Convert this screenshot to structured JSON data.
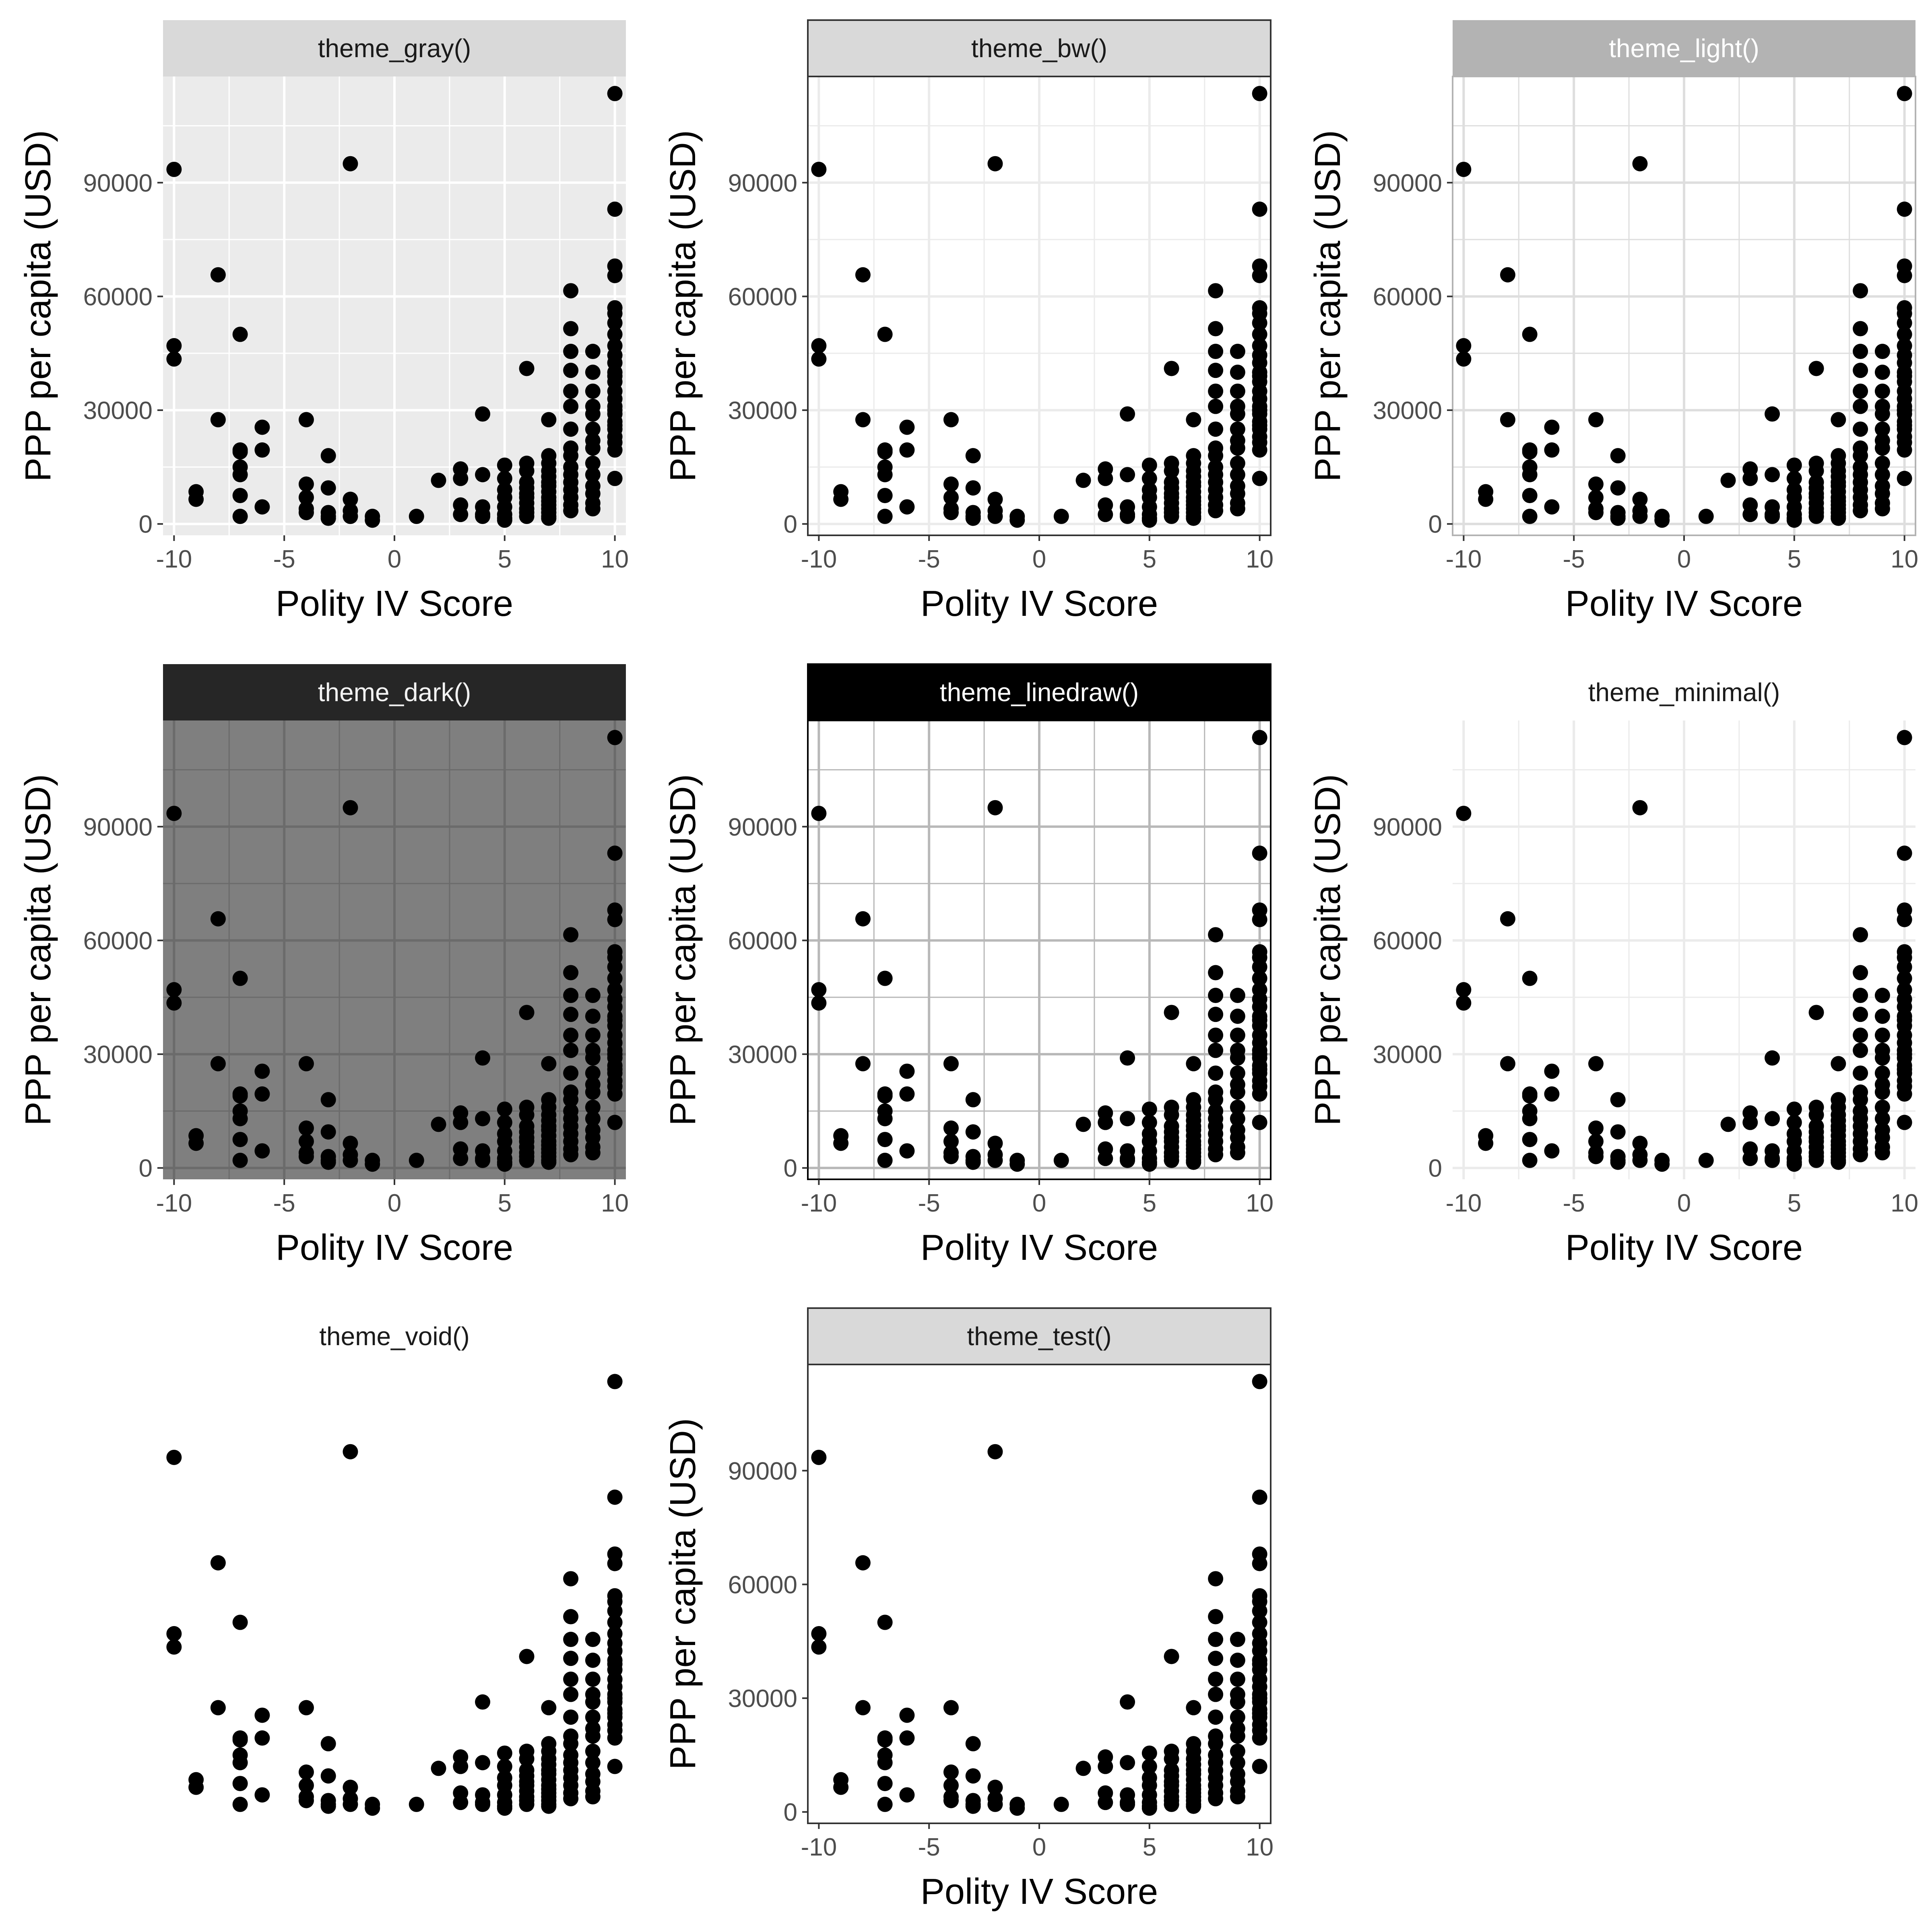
{
  "figure": {
    "panel_order": [
      "theme_gray()",
      "theme_bw()",
      "theme_light()",
      "theme_dark()",
      "theme_linedraw()",
      "theme_minimal()",
      "theme_void()",
      "theme_test()"
    ]
  },
  "chart_data": [
    {
      "type": "scatter",
      "theme": "gray",
      "title": "theme_gray()",
      "xlabel": "Polity IV Score",
      "ylabel": "PPP per capita (USD)",
      "xlim": [
        -10.5,
        10.5
      ],
      "ylim": [
        -3000,
        118000
      ],
      "x_ticks": [
        -10,
        -5,
        0,
        5,
        10
      ],
      "x_tick_labels": [
        "-10",
        "-5",
        "0",
        "5",
        "10"
      ],
      "y_ticks": [
        0,
        30000,
        60000,
        90000
      ],
      "y_tick_labels": [
        "0",
        "30000",
        "60000",
        "90000"
      ],
      "colors": {
        "background": "#ebebeb",
        "grid": "#ffffff",
        "strip_fill": "#d9d9d9",
        "strip_text": "#1a1a1a",
        "points": "#000000"
      }
    },
    {
      "type": "scatter",
      "theme": "bw",
      "title": "theme_bw()",
      "xlabel": "Polity IV Score",
      "ylabel": "PPP per capita (USD)",
      "xlim": [
        -10.5,
        10.5
      ],
      "ylim": [
        -3000,
        118000
      ],
      "x_ticks": [
        -10,
        -5,
        0,
        5,
        10
      ],
      "x_tick_labels": [
        "-10",
        "-5",
        "0",
        "5",
        "10"
      ],
      "y_ticks": [
        0,
        30000,
        60000,
        90000
      ],
      "y_tick_labels": [
        "0",
        "30000",
        "60000",
        "90000"
      ],
      "colors": {
        "background": "#ffffff",
        "grid": "#ebebeb",
        "border": "#333333",
        "strip_fill": "#d9d9d9",
        "strip_text": "#1a1a1a",
        "points": "#000000"
      }
    },
    {
      "type": "scatter",
      "theme": "light",
      "title": "theme_light()",
      "xlabel": "Polity IV Score",
      "ylabel": "PPP per capita (USD)",
      "xlim": [
        -10.5,
        10.5
      ],
      "ylim": [
        -3000,
        118000
      ],
      "x_ticks": [
        -10,
        -5,
        0,
        5,
        10
      ],
      "x_tick_labels": [
        "-10",
        "-5",
        "0",
        "5",
        "10"
      ],
      "y_ticks": [
        0,
        30000,
        60000,
        90000
      ],
      "y_tick_labels": [
        "0",
        "30000",
        "60000",
        "90000"
      ],
      "colors": {
        "background": "#ffffff",
        "grid": "#dedede",
        "border": "#b3b3b3",
        "strip_fill": "#b3b3b3",
        "strip_text": "#ffffff",
        "points": "#000000"
      }
    },
    {
      "type": "scatter",
      "theme": "dark",
      "title": "theme_dark()",
      "xlabel": "Polity IV Score",
      "ylabel": "PPP per capita (USD)",
      "xlim": [
        -10.5,
        10.5
      ],
      "ylim": [
        -3000,
        118000
      ],
      "x_ticks": [
        -10,
        -5,
        0,
        5,
        10
      ],
      "x_tick_labels": [
        "-10",
        "-5",
        "0",
        "5",
        "10"
      ],
      "y_ticks": [
        0,
        30000,
        60000,
        90000
      ],
      "y_tick_labels": [
        "0",
        "30000",
        "60000",
        "90000"
      ],
      "colors": {
        "background": "#7f7f7f",
        "grid": "#6b6b6b",
        "strip_fill": "#262626",
        "strip_text": "#f2f2f2",
        "points": "#000000"
      }
    },
    {
      "type": "scatter",
      "theme": "linedraw",
      "title": "theme_linedraw()",
      "xlabel": "Polity IV Score",
      "ylabel": "PPP per capita (USD)",
      "xlim": [
        -10.5,
        10.5
      ],
      "ylim": [
        -3000,
        118000
      ],
      "x_ticks": [
        -10,
        -5,
        0,
        5,
        10
      ],
      "x_tick_labels": [
        "-10",
        "-5",
        "0",
        "5",
        "10"
      ],
      "y_ticks": [
        0,
        30000,
        60000,
        90000
      ],
      "y_tick_labels": [
        "0",
        "30000",
        "60000",
        "90000"
      ],
      "colors": {
        "background": "#ffffff",
        "grid": "#b8b8b8",
        "border": "#000000",
        "strip_fill": "#000000",
        "strip_text": "#ffffff",
        "points": "#000000"
      }
    },
    {
      "type": "scatter",
      "theme": "minimal",
      "title": "theme_minimal()",
      "xlabel": "Polity IV Score",
      "ylabel": "PPP per capita (USD)",
      "xlim": [
        -10.5,
        10.5
      ],
      "ylim": [
        -3000,
        118000
      ],
      "x_ticks": [
        -10,
        -5,
        0,
        5,
        10
      ],
      "x_tick_labels": [
        "-10",
        "-5",
        "0",
        "5",
        "10"
      ],
      "y_ticks": [
        0,
        30000,
        60000,
        90000
      ],
      "y_tick_labels": [
        "0",
        "30000",
        "60000",
        "90000"
      ],
      "colors": {
        "background": "#ffffff",
        "grid": "#ebebeb",
        "strip_text": "#1a1a1a",
        "points": "#000000"
      }
    },
    {
      "type": "scatter",
      "theme": "void",
      "title": "theme_void()",
      "xlim": [
        -10.5,
        10.5
      ],
      "ylim": [
        -3000,
        118000
      ],
      "colors": {
        "background": "#ffffff",
        "strip_text": "#1a1a1a",
        "points": "#000000"
      }
    },
    {
      "type": "scatter",
      "theme": "test",
      "title": "theme_test()",
      "xlabel": "Polity IV Score",
      "ylabel": "PPP per capita (USD)",
      "xlim": [
        -10.5,
        10.5
      ],
      "ylim": [
        -3000,
        118000
      ],
      "x_ticks": [
        -10,
        -5,
        0,
        5,
        10
      ],
      "x_tick_labels": [
        "-10",
        "-5",
        "0",
        "5",
        "10"
      ],
      "y_ticks": [
        0,
        30000,
        60000,
        90000
      ],
      "y_tick_labels": [
        "0",
        "30000",
        "60000",
        "90000"
      ],
      "colors": {
        "background": "#ffffff",
        "border": "#333333",
        "strip_fill": "#d9d9d9",
        "strip_text": "#1a1a1a",
        "points": "#000000"
      }
    }
  ],
  "scatter_points": {
    "note_hidden": null,
    "x": [
      -10,
      -10,
      -10,
      -9,
      -9,
      -8,
      -8,
      -7,
      -7,
      -7,
      -7,
      -7,
      -7,
      -7,
      -6,
      -6,
      -6,
      -4,
      -4,
      -4,
      -4,
      -4,
      -3,
      -3,
      -3,
      -3,
      -3,
      -2,
      -2,
      -2,
      -2,
      -1,
      -1,
      1,
      2,
      3,
      3,
      3,
      3,
      4,
      4,
      4,
      4,
      4,
      5,
      5,
      5,
      5,
      5,
      5,
      5,
      5,
      6,
      6,
      6,
      6,
      6,
      6,
      6,
      6,
      6,
      6,
      6,
      7,
      7,
      7,
      7,
      7,
      7,
      7,
      7,
      7,
      7,
      7,
      7,
      7,
      7,
      7,
      8,
      8,
      8,
      8,
      8,
      8,
      8,
      8,
      8,
      8,
      8,
      8,
      8,
      8,
      8,
      8,
      9,
      9,
      9,
      9,
      9,
      9,
      9,
      9,
      9,
      9,
      9,
      9,
      9,
      9,
      10,
      10,
      10,
      10,
      10,
      10,
      10,
      10,
      10,
      10,
      10,
      10,
      10,
      10,
      10,
      10,
      10,
      10,
      10,
      10,
      10,
      10,
      10,
      10,
      10,
      10
    ],
    "y": [
      93500,
      47000,
      43500,
      8500,
      6500,
      65700,
      27500,
      50000,
      19500,
      15000,
      13000,
      7500,
      2000,
      19000,
      25500,
      19500,
      4500,
      27500,
      10500,
      7000,
      4000,
      3000,
      18000,
      9500,
      3000,
      1500,
      2000,
      95000,
      6500,
      3500,
      2000,
      2000,
      1000,
      2000,
      11500,
      14500,
      5000,
      2500,
      12000,
      29000,
      13000,
      4500,
      2500,
      2000,
      15500,
      12000,
      9000,
      7000,
      4500,
      2500,
      1500,
      1000,
      41000,
      16000,
      14000,
      11000,
      9500,
      8000,
      7000,
      5500,
      4000,
      3000,
      2000,
      27500,
      18000,
      16000,
      14000,
      12500,
      11000,
      10000,
      8500,
      7000,
      6000,
      5000,
      4000,
      3000,
      2000,
      1500,
      61500,
      51500,
      45500,
      40500,
      35000,
      31000,
      25000,
      20000,
      18000,
      15000,
      13000,
      11000,
      9000,
      7000,
      5000,
      3500,
      45500,
      40000,
      35000,
      31000,
      29000,
      25000,
      22000,
      20000,
      16000,
      13000,
      10000,
      8000,
      5500,
      4000,
      113500,
      83000,
      68000,
      65500,
      57000,
      55500,
      53000,
      50000,
      47000,
      44500,
      42500,
      40000,
      37500,
      35000,
      33000,
      31000,
      29000,
      27000,
      25000,
      23000,
      21500,
      19500,
      12000,
      39000,
      26000,
      30000
    ]
  }
}
